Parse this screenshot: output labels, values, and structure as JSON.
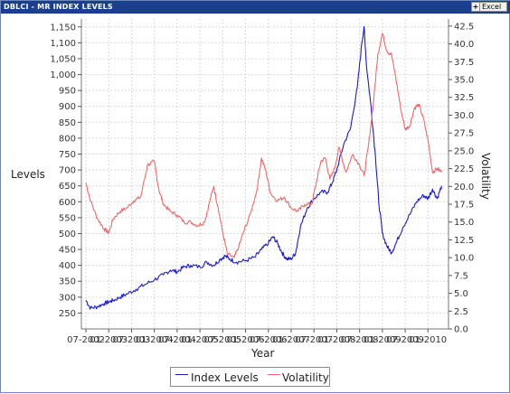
{
  "window": {
    "title": "DBLCI - MR INDEX LEVELS",
    "excel_plus": "+",
    "excel_label": "Excel"
  },
  "chart_data": {
    "type": "line",
    "xlabel": "Year",
    "ylabel_left": "Levels",
    "ylabel_right": "Volatility",
    "x_ticks": [
      "07-2002",
      "01-2003",
      "07-2003",
      "01-2004",
      "07-2004",
      "01-2005",
      "07-2005",
      "01-2006",
      "07-2006",
      "01-2007",
      "07-2007",
      "01-2008",
      "07-2008",
      "01-2009",
      "07-2009",
      "01-2010"
    ],
    "x_tick_labels_rendered": [
      "07-2002",
      "01-2003",
      "07-2003",
      "01-2004",
      "07-2004",
      "01-2005",
      "07-2005",
      "01-2006",
      "07-2006",
      "01-2007",
      "07-2007",
      "01-2008",
      "07-2008",
      "01-2009",
      "07-2009",
      "01-2010"
    ],
    "left_axis": {
      "min": 200,
      "max": 1175,
      "ticks": [
        250,
        300,
        350,
        400,
        450,
        500,
        550,
        600,
        650,
        700,
        750,
        800,
        850,
        900,
        950,
        1000,
        1050,
        1100,
        1150
      ],
      "tick_labels": [
        "250",
        "300",
        "350",
        "400",
        "450",
        "500",
        "550",
        "600",
        "650",
        "700",
        "750",
        "800",
        "850",
        "900",
        "950",
        "1,000",
        "1,050",
        "1,100",
        "1,150"
      ]
    },
    "right_axis": {
      "min": 0,
      "max": 43.5,
      "ticks": [
        0,
        2.5,
        5,
        7.5,
        10,
        12.5,
        15,
        17.5,
        20,
        22.5,
        25,
        27.5,
        30,
        32.5,
        35,
        37.5,
        40,
        42.5
      ],
      "tick_labels": [
        "0.0",
        "2.5",
        "5.0",
        "7.5",
        "10.0",
        "12.5",
        "15.0",
        "17.5",
        "20.0",
        "22.5",
        "25.0",
        "27.5",
        "30.0",
        "32.5",
        "35.0",
        "37.5",
        "40.0",
        "42.5"
      ]
    },
    "grid": true,
    "legend_position": "bottom",
    "series": [
      {
        "name": "Index Levels",
        "axis": "left",
        "color": "#1a1ad6",
        "points": [
          [
            2002.5,
            290
          ],
          [
            2002.6,
            265
          ],
          [
            2002.75,
            270
          ],
          [
            2002.9,
            280
          ],
          [
            2003.0,
            285
          ],
          [
            2003.1,
            290
          ],
          [
            2003.25,
            300
          ],
          [
            2003.4,
            310
          ],
          [
            2003.6,
            325
          ],
          [
            2003.8,
            340
          ],
          [
            2004.0,
            355
          ],
          [
            2004.2,
            370
          ],
          [
            2004.35,
            385
          ],
          [
            2004.5,
            380
          ],
          [
            2004.65,
            395
          ],
          [
            2004.8,
            400
          ],
          [
            2005.0,
            395
          ],
          [
            2005.15,
            410
          ],
          [
            2005.3,
            400
          ],
          [
            2005.45,
            420
          ],
          [
            2005.55,
            430
          ],
          [
            2005.65,
            420
          ],
          [
            2005.8,
            410
          ],
          [
            2006.0,
            415
          ],
          [
            2006.2,
            425
          ],
          [
            2006.35,
            450
          ],
          [
            2006.5,
            470
          ],
          [
            2006.6,
            490
          ],
          [
            2006.7,
            470
          ],
          [
            2006.8,
            440
          ],
          [
            2006.9,
            420
          ],
          [
            2007.0,
            420
          ],
          [
            2007.1,
            440
          ],
          [
            2007.2,
            520
          ],
          [
            2007.35,
            580
          ],
          [
            2007.5,
            610
          ],
          [
            2007.65,
            630
          ],
          [
            2007.8,
            630
          ],
          [
            2007.9,
            660
          ],
          [
            2008.0,
            700
          ],
          [
            2008.15,
            780
          ],
          [
            2008.3,
            830
          ],
          [
            2008.45,
            960
          ],
          [
            2008.55,
            1100
          ],
          [
            2008.6,
            1150
          ],
          [
            2008.65,
            1030
          ],
          [
            2008.75,
            900
          ],
          [
            2008.85,
            740
          ],
          [
            2008.92,
            600
          ],
          [
            2009.0,
            500
          ],
          [
            2009.1,
            460
          ],
          [
            2009.2,
            440
          ],
          [
            2009.3,
            470
          ],
          [
            2009.45,
            520
          ],
          [
            2009.6,
            560
          ],
          [
            2009.75,
            600
          ],
          [
            2009.9,
            620
          ],
          [
            2010.0,
            610
          ],
          [
            2010.1,
            640
          ],
          [
            2010.2,
            610
          ],
          [
            2010.3,
            650
          ]
        ]
      },
      {
        "name": "Volatility",
        "axis": "right",
        "color": "#ee6a6a",
        "points": [
          [
            2002.5,
            20.5
          ],
          [
            2002.6,
            18.0
          ],
          [
            2002.75,
            15.5
          ],
          [
            2002.9,
            14.0
          ],
          [
            2003.0,
            13.5
          ],
          [
            2003.1,
            15.5
          ],
          [
            2003.25,
            16.5
          ],
          [
            2003.4,
            17.0
          ],
          [
            2003.55,
            18.0
          ],
          [
            2003.7,
            18.5
          ],
          [
            2003.85,
            23.0
          ],
          [
            2004.0,
            23.5
          ],
          [
            2004.1,
            19.5
          ],
          [
            2004.2,
            17.5
          ],
          [
            2004.35,
            16.5
          ],
          [
            2004.5,
            16.0
          ],
          [
            2004.65,
            15.0
          ],
          [
            2004.8,
            15.0
          ],
          [
            2004.95,
            14.5
          ],
          [
            2005.1,
            15.0
          ],
          [
            2005.2,
            17.5
          ],
          [
            2005.3,
            20.0
          ],
          [
            2005.4,
            17.0
          ],
          [
            2005.5,
            13.5
          ],
          [
            2005.6,
            10.5
          ],
          [
            2005.75,
            10.0
          ],
          [
            2005.85,
            11.5
          ],
          [
            2005.95,
            13.5
          ],
          [
            2006.1,
            16.0
          ],
          [
            2006.25,
            19.5
          ],
          [
            2006.35,
            24.0
          ],
          [
            2006.45,
            22.0
          ],
          [
            2006.55,
            19.0
          ],
          [
            2006.7,
            18.0
          ],
          [
            2006.85,
            18.5
          ],
          [
            2007.0,
            17.0
          ],
          [
            2007.15,
            16.5
          ],
          [
            2007.3,
            17.5
          ],
          [
            2007.45,
            17.5
          ],
          [
            2007.55,
            20.5
          ],
          [
            2007.65,
            23.5
          ],
          [
            2007.75,
            24.0
          ],
          [
            2007.85,
            21.0
          ],
          [
            2007.95,
            22.5
          ],
          [
            2008.05,
            25.5
          ],
          [
            2008.2,
            22.0
          ],
          [
            2008.35,
            24.5
          ],
          [
            2008.5,
            23.0
          ],
          [
            2008.6,
            21.5
          ],
          [
            2008.7,
            26.0
          ],
          [
            2008.8,
            31.5
          ],
          [
            2008.9,
            38.5
          ],
          [
            2009.0,
            41.5
          ],
          [
            2009.1,
            39.0
          ],
          [
            2009.2,
            38.5
          ],
          [
            2009.3,
            35.0
          ],
          [
            2009.4,
            31.0
          ],
          [
            2009.5,
            28.0
          ],
          [
            2009.6,
            28.5
          ],
          [
            2009.7,
            31.0
          ],
          [
            2009.8,
            31.5
          ],
          [
            2009.9,
            29.5
          ],
          [
            2010.0,
            26.5
          ],
          [
            2010.1,
            22.0
          ],
          [
            2010.2,
            22.5
          ],
          [
            2010.3,
            22.0
          ]
        ]
      }
    ]
  }
}
